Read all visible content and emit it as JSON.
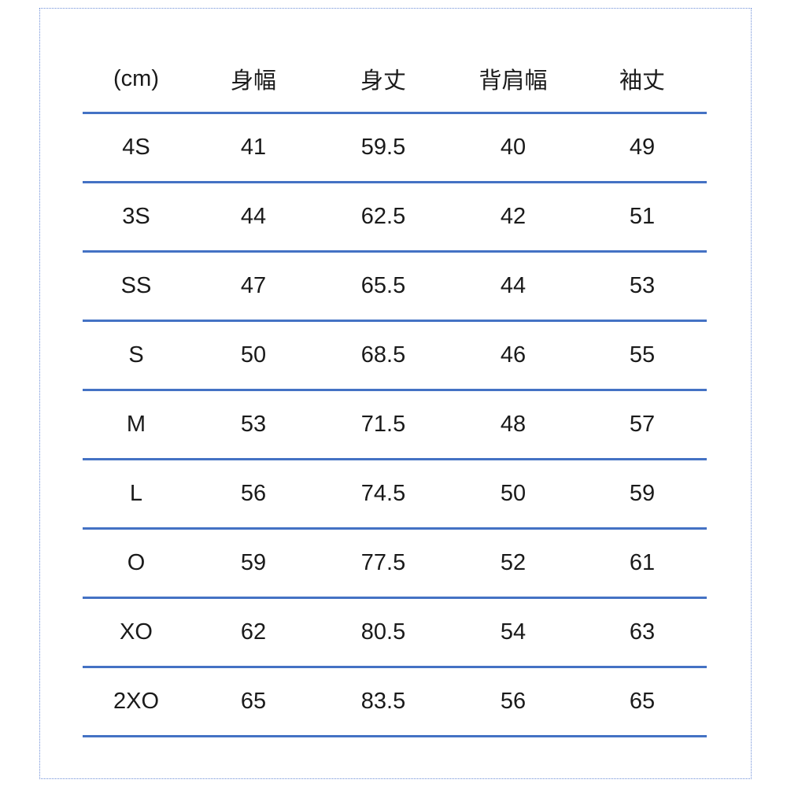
{
  "table": {
    "headers": [
      "(cm)",
      "身幅",
      "身丈",
      "背肩幅",
      "袖丈"
    ],
    "rows": [
      [
        "4S",
        "41",
        "59.5",
        "40",
        "49"
      ],
      [
        "3S",
        "44",
        "62.5",
        "42",
        "51"
      ],
      [
        "SS",
        "47",
        "65.5",
        "44",
        "53"
      ],
      [
        "S",
        "50",
        "68.5",
        "46",
        "55"
      ],
      [
        "M",
        "53",
        "71.5",
        "48",
        "57"
      ],
      [
        "L",
        "56",
        "74.5",
        "50",
        "59"
      ],
      [
        "O",
        "59",
        "77.5",
        "52",
        "61"
      ],
      [
        "XO",
        "62",
        "80.5",
        "54",
        "63"
      ],
      [
        "2XO",
        "65",
        "83.5",
        "56",
        "65"
      ]
    ]
  },
  "colors": {
    "rule": "#4472c4",
    "frame": "#6f8fd8"
  }
}
